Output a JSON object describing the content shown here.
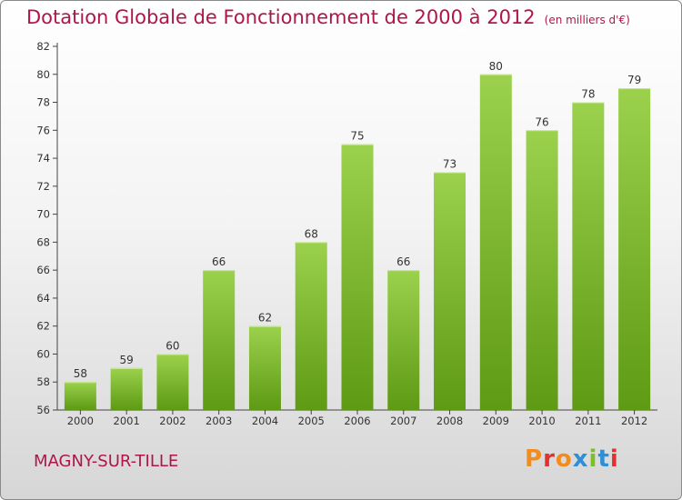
{
  "header": {
    "title": "Dotation Globale de Fonctionnement de 2000 à 2012",
    "subtitle": "(en milliers d'€)"
  },
  "footer": {
    "commune": "MAGNY-SUR-TILLE",
    "brand": "Proxiti"
  },
  "colors": {
    "title": "#b0154a",
    "bar_top": "#9bd14d",
    "bar_bottom": "#5e9a14",
    "brand_letters": [
      "#f28c1c",
      "#e3312f",
      "#f28c1c",
      "#2e8fd8",
      "#7bbf2a",
      "#2e8fd8",
      "#e3312f"
    ]
  },
  "chart_data": {
    "type": "bar",
    "categories": [
      "2000",
      "2001",
      "2002",
      "2003",
      "2004",
      "2005",
      "2006",
      "2007",
      "2008",
      "2009",
      "2010",
      "2011",
      "2012"
    ],
    "values": [
      58,
      59,
      60,
      66,
      62,
      68,
      75,
      66,
      73,
      80,
      76,
      78,
      79
    ],
    "title": "Dotation Globale de Fonctionnement de 2000 à 2012",
    "subtitle": "(en milliers d'€)",
    "xlabel": "",
    "ylabel": "",
    "ylim": [
      56,
      82
    ],
    "yticks": [
      56,
      58,
      60,
      62,
      64,
      66,
      68,
      70,
      72,
      74,
      76,
      78,
      80,
      82
    ],
    "grid": false,
    "legend": "none"
  }
}
